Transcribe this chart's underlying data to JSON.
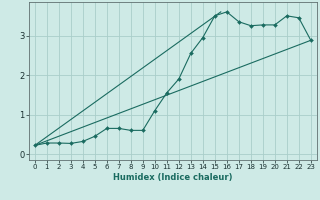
{
  "xlabel": "Humidex (Indice chaleur)",
  "ylabel": "",
  "bg_color": "#ceeae6",
  "grid_color": "#aaceca",
  "line_color": "#1a6b60",
  "xlim": [
    -0.5,
    23.5
  ],
  "ylim": [
    -0.15,
    3.85
  ],
  "yticks": [
    0,
    1,
    2,
    3
  ],
  "xticks": [
    0,
    1,
    2,
    3,
    4,
    5,
    6,
    7,
    8,
    9,
    10,
    11,
    12,
    13,
    14,
    15,
    16,
    17,
    18,
    19,
    20,
    21,
    22,
    23
  ],
  "curve_x": [
    0,
    1,
    2,
    3,
    4,
    5,
    6,
    7,
    8,
    9,
    10,
    11,
    12,
    13,
    14,
    15,
    16,
    17,
    18,
    19,
    20,
    21,
    22,
    23
  ],
  "curve_y": [
    0.22,
    0.28,
    0.28,
    0.27,
    0.32,
    0.45,
    0.65,
    0.65,
    0.6,
    0.6,
    1.1,
    1.55,
    1.9,
    2.55,
    2.95,
    3.5,
    3.6,
    3.35,
    3.25,
    3.27,
    3.27,
    3.5,
    3.45,
    2.88
  ],
  "line1_x": [
    0,
    23
  ],
  "line1_y": [
    0.22,
    2.88
  ],
  "line2_x": [
    0,
    15.5
  ],
  "line2_y": [
    0.22,
    3.6
  ]
}
